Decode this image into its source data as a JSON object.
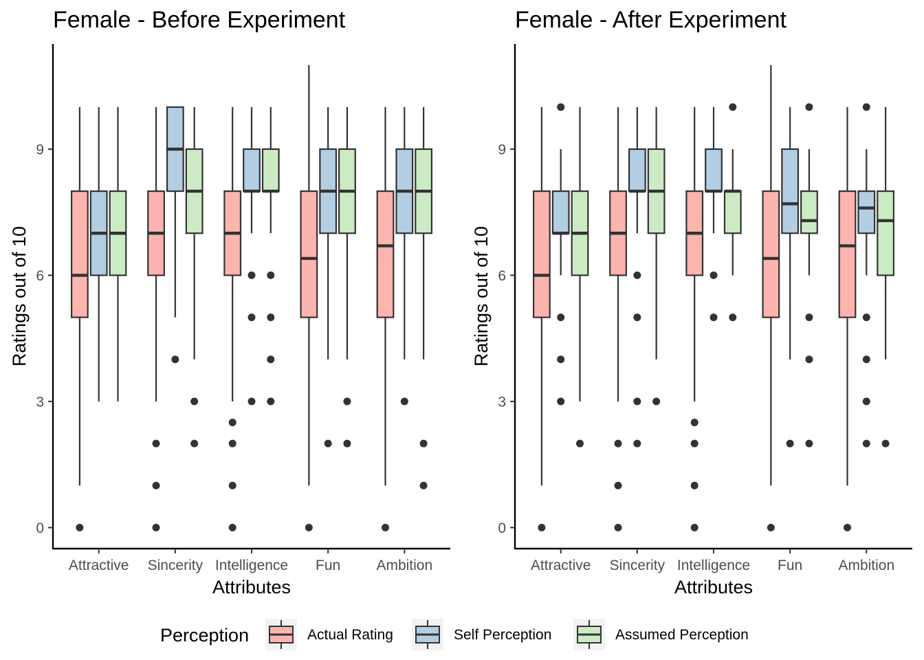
{
  "chart_data": [
    {
      "type": "boxplot",
      "title": "Female - Before Experiment",
      "xlabel": "Attributes",
      "ylabel": "Ratings out of 10",
      "categories": [
        "Attractive",
        "Sincerity",
        "Intelligence",
        "Fun",
        "Ambition"
      ],
      "yticks": [
        0,
        3,
        6,
        9
      ],
      "ylim": [
        -0.5,
        11.5
      ],
      "grid": false,
      "series": [
        {
          "name": "Actual Rating",
          "boxes": [
            {
              "whisker_low": 1,
              "q1": 5,
              "median": 6,
              "q3": 8,
              "whisker_high": 10,
              "outliers": [
                0
              ]
            },
            {
              "whisker_low": 3,
              "q1": 6,
              "median": 7,
              "q3": 8,
              "whisker_high": 10,
              "outliers": [
                2,
                1,
                0
              ]
            },
            {
              "whisker_low": 3,
              "q1": 6,
              "median": 7,
              "q3": 8,
              "whisker_high": 10,
              "outliers": [
                2.5,
                2,
                1,
                0
              ]
            },
            {
              "whisker_low": 1,
              "q1": 5,
              "median": 6.4,
              "q3": 8,
              "whisker_high": 11,
              "outliers": [
                0
              ]
            },
            {
              "whisker_low": 1,
              "q1": 5,
              "median": 6.7,
              "q3": 8,
              "whisker_high": 10,
              "outliers": [
                0
              ]
            }
          ]
        },
        {
          "name": "Self Perception",
          "boxes": [
            {
              "whisker_low": 3,
              "q1": 6,
              "median": 7,
              "q3": 8,
              "whisker_high": 10,
              "outliers": []
            },
            {
              "whisker_low": 5,
              "q1": 8,
              "median": 9,
              "q3": 10,
              "whisker_high": 10,
              "outliers": [
                4
              ]
            },
            {
              "whisker_low": 7,
              "q1": 8,
              "median": 8,
              "q3": 9,
              "whisker_high": 10,
              "outliers": [
                6,
                5,
                3
              ]
            },
            {
              "whisker_low": 4,
              "q1": 7,
              "median": 8,
              "q3": 9,
              "whisker_high": 10,
              "outliers": [
                2
              ]
            },
            {
              "whisker_low": 4,
              "q1": 7,
              "median": 8,
              "q3": 9,
              "whisker_high": 10,
              "outliers": [
                3
              ]
            }
          ]
        },
        {
          "name": "Assumed Perception",
          "boxes": [
            {
              "whisker_low": 3,
              "q1": 6,
              "median": 7,
              "q3": 8,
              "whisker_high": 10,
              "outliers": []
            },
            {
              "whisker_low": 4,
              "q1": 7,
              "median": 8,
              "q3": 9,
              "whisker_high": 10,
              "outliers": [
                3,
                2
              ]
            },
            {
              "whisker_low": 7,
              "q1": 8,
              "median": 8,
              "q3": 9,
              "whisker_high": 10,
              "outliers": [
                6,
                5,
                4,
                3
              ]
            },
            {
              "whisker_low": 4,
              "q1": 7,
              "median": 8,
              "q3": 9,
              "whisker_high": 10,
              "outliers": [
                3,
                2
              ]
            },
            {
              "whisker_low": 4,
              "q1": 7,
              "median": 8,
              "q3": 9,
              "whisker_high": 10,
              "outliers": [
                2,
                1
              ]
            }
          ]
        }
      ]
    },
    {
      "type": "boxplot",
      "title": "Female - After Experiment",
      "xlabel": "Attributes",
      "ylabel": "Ratings out of 10",
      "categories": [
        "Attractive",
        "Sincerity",
        "Intelligence",
        "Fun",
        "Ambition"
      ],
      "yticks": [
        0,
        3,
        6,
        9
      ],
      "ylim": [
        -0.5,
        11.5
      ],
      "grid": false,
      "series": [
        {
          "name": "Actual Rating",
          "boxes": [
            {
              "whisker_low": 1,
              "q1": 5,
              "median": 6,
              "q3": 8,
              "whisker_high": 10,
              "outliers": [
                0
              ]
            },
            {
              "whisker_low": 3,
              "q1": 6,
              "median": 7,
              "q3": 8,
              "whisker_high": 10,
              "outliers": [
                2,
                1,
                0
              ]
            },
            {
              "whisker_low": 3,
              "q1": 6,
              "median": 7,
              "q3": 8,
              "whisker_high": 10,
              "outliers": [
                2.5,
                2,
                1,
                0
              ]
            },
            {
              "whisker_low": 1,
              "q1": 5,
              "median": 6.4,
              "q3": 8,
              "whisker_high": 11,
              "outliers": [
                0
              ]
            },
            {
              "whisker_low": 1,
              "q1": 5,
              "median": 6.7,
              "q3": 8,
              "whisker_high": 10,
              "outliers": [
                0
              ]
            }
          ]
        },
        {
          "name": "Self Perception",
          "boxes": [
            {
              "whisker_low": 6,
              "q1": 7,
              "median": 7,
              "q3": 8,
              "whisker_high": 9,
              "outliers": [
                10,
                5,
                4,
                3
              ]
            },
            {
              "whisker_low": 7,
              "q1": 8,
              "median": 8,
              "q3": 9,
              "whisker_high": 10,
              "outliers": [
                6,
                5,
                3,
                2
              ]
            },
            {
              "whisker_low": 7,
              "q1": 8,
              "median": 8,
              "q3": 9,
              "whisker_high": 10,
              "outliers": [
                6,
                5
              ]
            },
            {
              "whisker_low": 4,
              "q1": 7,
              "median": 7.7,
              "q3": 9,
              "whisker_high": 10,
              "outliers": [
                2
              ]
            },
            {
              "whisker_low": 6,
              "q1": 7,
              "median": 7.6,
              "q3": 8,
              "whisker_high": 9,
              "outliers": [
                10,
                5,
                4,
                3,
                2
              ]
            }
          ]
        },
        {
          "name": "Assumed Perception",
          "boxes": [
            {
              "whisker_low": 3,
              "q1": 6,
              "median": 7,
              "q3": 8,
              "whisker_high": 10,
              "outliers": [
                2
              ]
            },
            {
              "whisker_low": 4,
              "q1": 7,
              "median": 8,
              "q3": 9,
              "whisker_high": 10,
              "outliers": [
                3
              ]
            },
            {
              "whisker_low": 6,
              "q1": 7,
              "median": 8,
              "q3": 8,
              "whisker_high": 9,
              "outliers": [
                10,
                5
              ]
            },
            {
              "whisker_low": 6,
              "q1": 7,
              "median": 7.3,
              "q3": 8,
              "whisker_high": 9,
              "outliers": [
                10,
                5,
                4,
                2
              ]
            },
            {
              "whisker_low": 4,
              "q1": 6,
              "median": 7.3,
              "q3": 8,
              "whisker_high": 10,
              "outliers": [
                2
              ]
            }
          ]
        }
      ]
    }
  ],
  "legend": {
    "title": "Perception",
    "position": "bottom",
    "items": [
      {
        "label": "Actual Rating",
        "color": "#fbb4ae"
      },
      {
        "label": "Self Perception",
        "color": "#b3cde3"
      },
      {
        "label": "Assumed Perception",
        "color": "#ccebc5"
      }
    ]
  },
  "colors": {
    "box_stroke": "#333333",
    "outlier": "#333333",
    "axis": "#000000"
  }
}
